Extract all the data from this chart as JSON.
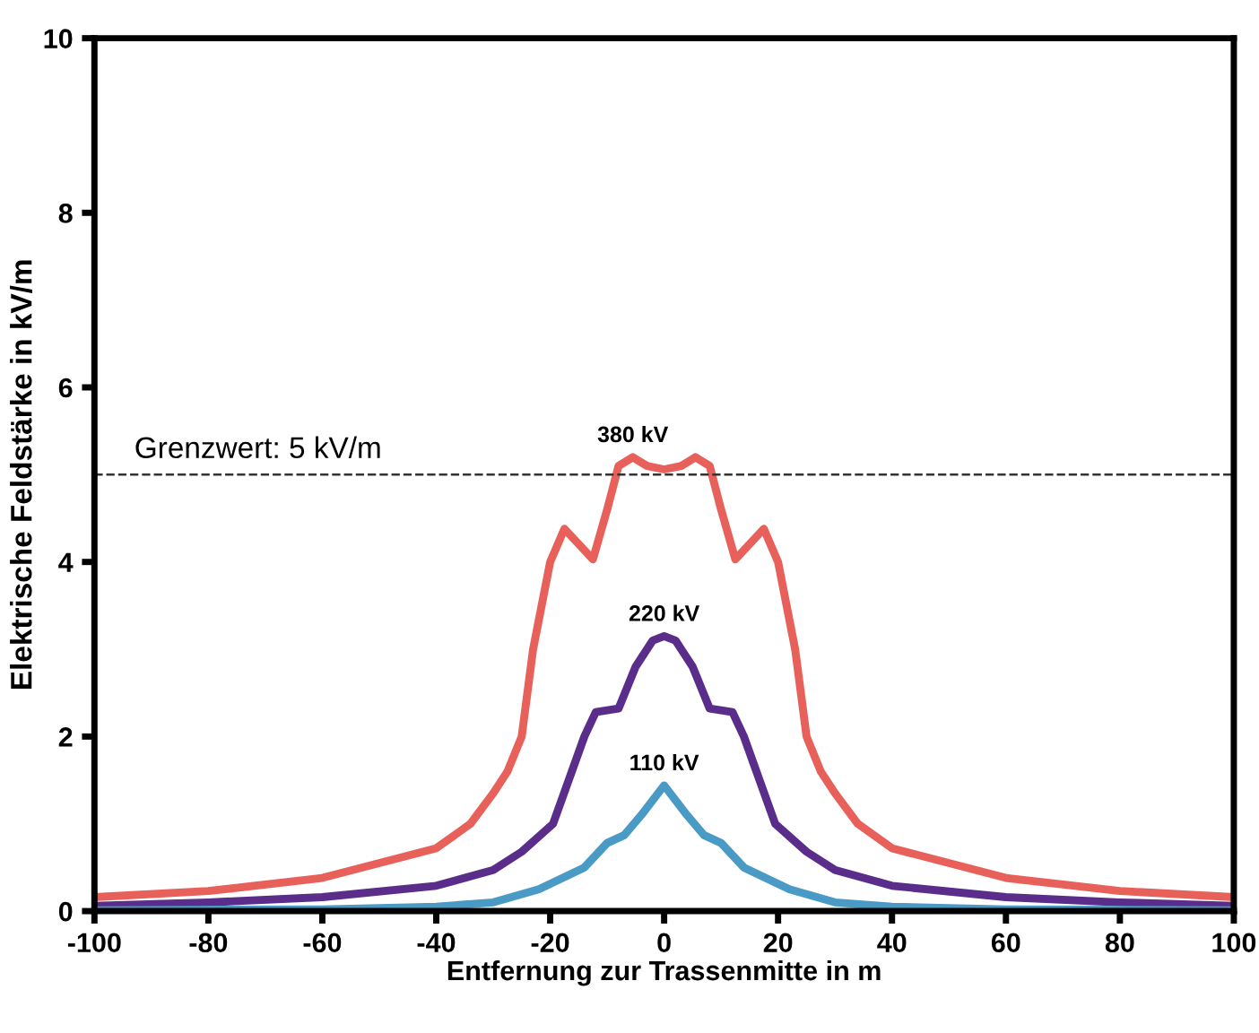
{
  "chart_data": {
    "type": "line",
    "xlabel": "Entfernung zur Trassenmitte in m",
    "ylabel": "Elektrische Feldstärke in kV/m",
    "xlim": [
      -100,
      100
    ],
    "xticks": [
      -100,
      -80,
      -60,
      -40,
      -20,
      0,
      20,
      40,
      60,
      80,
      100
    ],
    "ylim": [
      0,
      10
    ],
    "yticks": [
      0,
      2,
      4,
      6,
      8,
      10
    ],
    "grid": false,
    "legend": false,
    "marker": "none",
    "line_style": "solid",
    "ref_lines": [
      {
        "axis": "y",
        "value": 5,
        "label": "Grenzwert: 5 kV/m",
        "color": "#333333",
        "line_style": "dashed"
      }
    ],
    "series": [
      {
        "name": "380 kV",
        "color": "#e8605a",
        "x": [
          -100,
          -80,
          -60,
          -40,
          -34,
          -30,
          -27.5,
          -25,
          -23,
          -20,
          -17.5,
          -12.5,
          -10,
          -8,
          -5.5,
          -3,
          0,
          3,
          5.5,
          8,
          10,
          12.5,
          17.5,
          20,
          23,
          25,
          27.5,
          30,
          34,
          40,
          60,
          80,
          100
        ],
        "values": [
          0.16,
          0.23,
          0.38,
          0.72,
          1.0,
          1.35,
          1.6,
          2.0,
          3.0,
          4.0,
          4.38,
          4.03,
          4.6,
          5.1,
          5.2,
          5.1,
          5.06,
          5.1,
          5.2,
          5.1,
          4.6,
          4.03,
          4.38,
          4.0,
          3.0,
          2.0,
          1.6,
          1.35,
          1.0,
          0.72,
          0.38,
          0.23,
          0.16
        ]
      },
      {
        "name": "220 kV",
        "color": "#5a2d8a",
        "x": [
          -100,
          -80,
          -60,
          -40,
          -30,
          -25,
          -19.5,
          -14,
          -12,
          -8,
          -5,
          -2,
          0,
          2,
          5,
          8,
          12,
          14,
          19.5,
          25,
          30,
          40,
          60,
          80,
          100
        ],
        "values": [
          0.06,
          0.1,
          0.16,
          0.29,
          0.47,
          0.68,
          1.0,
          2.0,
          2.28,
          2.32,
          2.8,
          3.1,
          3.15,
          3.1,
          2.8,
          2.32,
          2.28,
          2.0,
          1.0,
          0.68,
          0.47,
          0.29,
          0.16,
          0.1,
          0.06
        ]
      },
      {
        "name": "110 kV",
        "color": "#4a9ac6",
        "x": [
          -100,
          -60,
          -40,
          -30,
          -22,
          -14,
          -10,
          -7,
          -4,
          0,
          4,
          7,
          10,
          14,
          22,
          30,
          40,
          60,
          100
        ],
        "values": [
          0.01,
          0.02,
          0.05,
          0.1,
          0.25,
          0.5,
          0.78,
          0.87,
          1.1,
          1.44,
          1.1,
          0.87,
          0.78,
          0.5,
          0.25,
          0.1,
          0.05,
          0.02,
          0.01
        ]
      }
    ]
  }
}
